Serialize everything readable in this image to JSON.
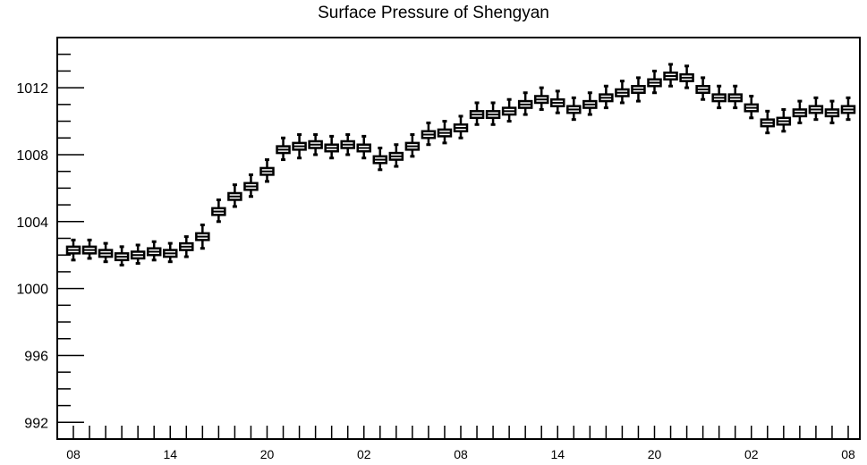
{
  "chart_data": {
    "type": "box",
    "title": "Surface Pressure of Shengyan",
    "xlabel": "",
    "ylabel": "",
    "ylim": [
      991,
      1015
    ],
    "y_ticks": [
      992,
      996,
      1000,
      1004,
      1008,
      1012
    ],
    "y_tick_labels": [
      "992",
      "996",
      "1000",
      "1004",
      "1008",
      "1012"
    ],
    "x_tick_labels": [
      "08",
      "14",
      "20",
      "02",
      "08",
      "14",
      "20",
      "02",
      "08"
    ],
    "x_tick_label_indices": [
      0,
      6,
      12,
      18,
      24,
      30,
      36,
      42,
      48
    ],
    "grid": false,
    "series": [
      {
        "medians": [
          1002.3,
          1002.3,
          1002.1,
          1001.9,
          1002.0,
          1002.2,
          1002.1,
          1002.5,
          1003.1,
          1004.6,
          1005.5,
          1006.1,
          1007.0,
          1008.3,
          1008.5,
          1008.6,
          1008.4,
          1008.6,
          1008.4,
          1007.7,
          1007.9,
          1008.5,
          1009.2,
          1009.3,
          1009.6,
          1010.4,
          1010.4,
          1010.6,
          1011.0,
          1011.3,
          1011.1,
          1010.7,
          1011.0,
          1011.4,
          1011.7,
          1011.9,
          1012.3,
          1012.7,
          1012.6,
          1011.9,
          1011.4,
          1011.4,
          1010.8,
          1009.9,
          1010.0,
          1010.5,
          1010.7,
          1010.5,
          1010.7
        ],
        "q1": [
          1002.1,
          1002.1,
          1001.9,
          1001.7,
          1001.8,
          1002.0,
          1001.9,
          1002.3,
          1002.9,
          1004.4,
          1005.3,
          1005.9,
          1006.8,
          1008.1,
          1008.3,
          1008.4,
          1008.2,
          1008.4,
          1008.2,
          1007.5,
          1007.7,
          1008.3,
          1009.0,
          1009.1,
          1009.4,
          1010.2,
          1010.2,
          1010.4,
          1010.8,
          1011.1,
          1010.9,
          1010.5,
          1010.8,
          1011.2,
          1011.5,
          1011.7,
          1012.1,
          1012.5,
          1012.4,
          1011.7,
          1011.2,
          1011.2,
          1010.6,
          1009.7,
          1009.8,
          1010.3,
          1010.5,
          1010.3,
          1010.5
        ],
        "q3": [
          1002.5,
          1002.5,
          1002.3,
          1002.1,
          1002.2,
          1002.4,
          1002.3,
          1002.7,
          1003.3,
          1004.8,
          1005.7,
          1006.3,
          1007.2,
          1008.5,
          1008.7,
          1008.8,
          1008.6,
          1008.8,
          1008.6,
          1007.9,
          1008.1,
          1008.7,
          1009.4,
          1009.5,
          1009.8,
          1010.6,
          1010.6,
          1010.8,
          1011.2,
          1011.5,
          1011.3,
          1010.9,
          1011.2,
          1011.6,
          1011.9,
          1012.1,
          1012.5,
          1012.9,
          1012.8,
          1012.1,
          1011.6,
          1011.6,
          1011.0,
          1010.1,
          1010.2,
          1010.7,
          1010.9,
          1010.7,
          1010.9
        ],
        "min": [
          1001.7,
          1001.8,
          1001.6,
          1001.4,
          1001.5,
          1001.7,
          1001.6,
          1001.9,
          1002.4,
          1004.0,
          1004.9,
          1005.5,
          1006.4,
          1007.7,
          1007.8,
          1008.0,
          1007.8,
          1008.0,
          1007.8,
          1007.1,
          1007.3,
          1007.9,
          1008.6,
          1008.7,
          1009.0,
          1009.8,
          1009.8,
          1010.0,
          1010.4,
          1010.7,
          1010.5,
          1010.1,
          1010.4,
          1010.8,
          1011.1,
          1011.2,
          1011.7,
          1012.1,
          1012.0,
          1011.3,
          1010.8,
          1010.8,
          1010.2,
          1009.3,
          1009.4,
          1009.9,
          1010.1,
          1009.9,
          1010.1
        ],
        "max": [
          1002.9,
          1002.9,
          1002.7,
          1002.5,
          1002.6,
          1002.8,
          1002.7,
          1003.1,
          1003.8,
          1005.3,
          1006.2,
          1006.8,
          1007.7,
          1009.0,
          1009.2,
          1009.2,
          1009.1,
          1009.2,
          1009.1,
          1008.4,
          1008.6,
          1009.2,
          1009.9,
          1010.0,
          1010.3,
          1011.1,
          1011.1,
          1011.3,
          1011.7,
          1012.0,
          1011.8,
          1011.4,
          1011.7,
          1012.1,
          1012.4,
          1012.6,
          1013.0,
          1013.4,
          1013.3,
          1012.6,
          1012.1,
          1012.1,
          1011.5,
          1010.6,
          1010.7,
          1011.2,
          1011.4,
          1011.2,
          1011.4
        ]
      }
    ]
  }
}
